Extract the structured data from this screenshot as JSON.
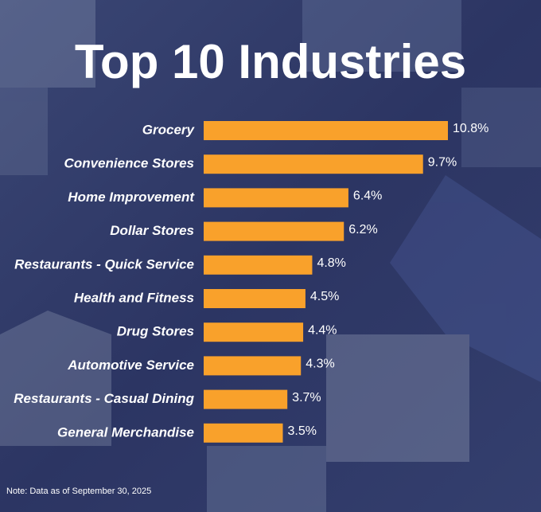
{
  "chart_data": {
    "type": "bar",
    "orientation": "horizontal",
    "title": "Top 10 Industries",
    "categories": [
      "Grocery",
      "Convenience Stores",
      "Home Improvement",
      "Dollar Stores",
      "Restaurants - Quick Service",
      "Health and Fitness",
      "Drug Stores",
      "Automotive Service",
      "Restaurants - Casual Dining",
      "General Merchandise"
    ],
    "values": [
      10.8,
      9.7,
      6.4,
      6.2,
      4.8,
      4.5,
      4.4,
      4.3,
      3.7,
      3.5
    ],
    "value_labels": [
      "10.8%",
      "9.7%",
      "6.4%",
      "6.2%",
      "4.8%",
      "4.5%",
      "4.4%",
      "4.3%",
      "3.7%",
      "3.5%"
    ],
    "color": "#f9a12b",
    "note": "Note: Data as of September 30, 2025"
  }
}
